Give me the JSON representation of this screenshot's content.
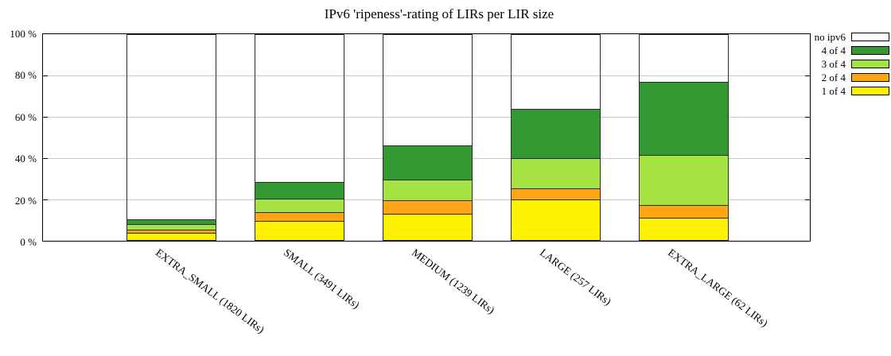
{
  "chart_data": {
    "type": "bar",
    "stacked": true,
    "title": "IPv6 'ripeness'-rating of LIRs per LIR size",
    "categories": [
      "EXTRA_SMALL (1820 LIRs)",
      "SMALL (3491 LIRs)",
      "MEDIUM (1239 LIRs)",
      "LARGE (257 LIRs)",
      "EXTRA_LARGE (62 LIRs)"
    ],
    "series": [
      {
        "name": "1 of 4",
        "color": "#fff200",
        "values": [
          4,
          9.5,
          13,
          20,
          11
        ]
      },
      {
        "name": "2 of 4",
        "color": "#ffa515",
        "values": [
          1.5,
          4.5,
          6.5,
          5.5,
          6.5
        ]
      },
      {
        "name": "3 of 4",
        "color": "#a5e342",
        "values": [
          2.5,
          6.5,
          10,
          14.5,
          24
        ]
      },
      {
        "name": "4 of 4",
        "color": "#339933",
        "values": [
          2.5,
          8,
          16.5,
          24,
          35.5
        ]
      },
      {
        "name": "no ipv6",
        "color": "#ffffff",
        "values": [
          89.5,
          71.5,
          54,
          36,
          23
        ]
      }
    ],
    "legend_order": [
      "no ipv6",
      "4 of 4",
      "3 of 4",
      "2 of 4",
      "1 of 4"
    ],
    "legend_position": "outside-top-right",
    "y_tick_values": [
      0,
      20,
      40,
      60,
      80,
      100
    ],
    "y_tick_labels": [
      "0 %",
      "20 %",
      "40 %",
      "60 %",
      "80 %",
      "100 %"
    ],
    "ylim": [
      0,
      100
    ],
    "grid": true,
    "xlabel": "",
    "ylabel": ""
  }
}
